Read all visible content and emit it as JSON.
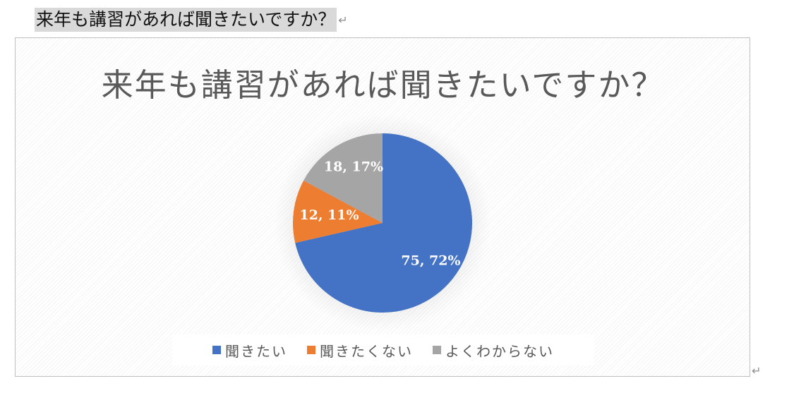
{
  "document": {
    "heading": "来年も講習があれば聞きたいですか？",
    "paragraph_mark": "↵"
  },
  "chart_data": {
    "type": "pie",
    "title": "来年も講習があれば聞きたいですか？",
    "categories": [
      "聞きたい",
      "聞きたくない",
      "よくわからない"
    ],
    "values": [
      75,
      12,
      18
    ],
    "percent_labels": [
      "75, 72%",
      "12, 11%",
      "18, 17%"
    ],
    "colors": [
      "#4472c4",
      "#ed7d31",
      "#a5a5a5"
    ],
    "legend_position": "bottom"
  }
}
